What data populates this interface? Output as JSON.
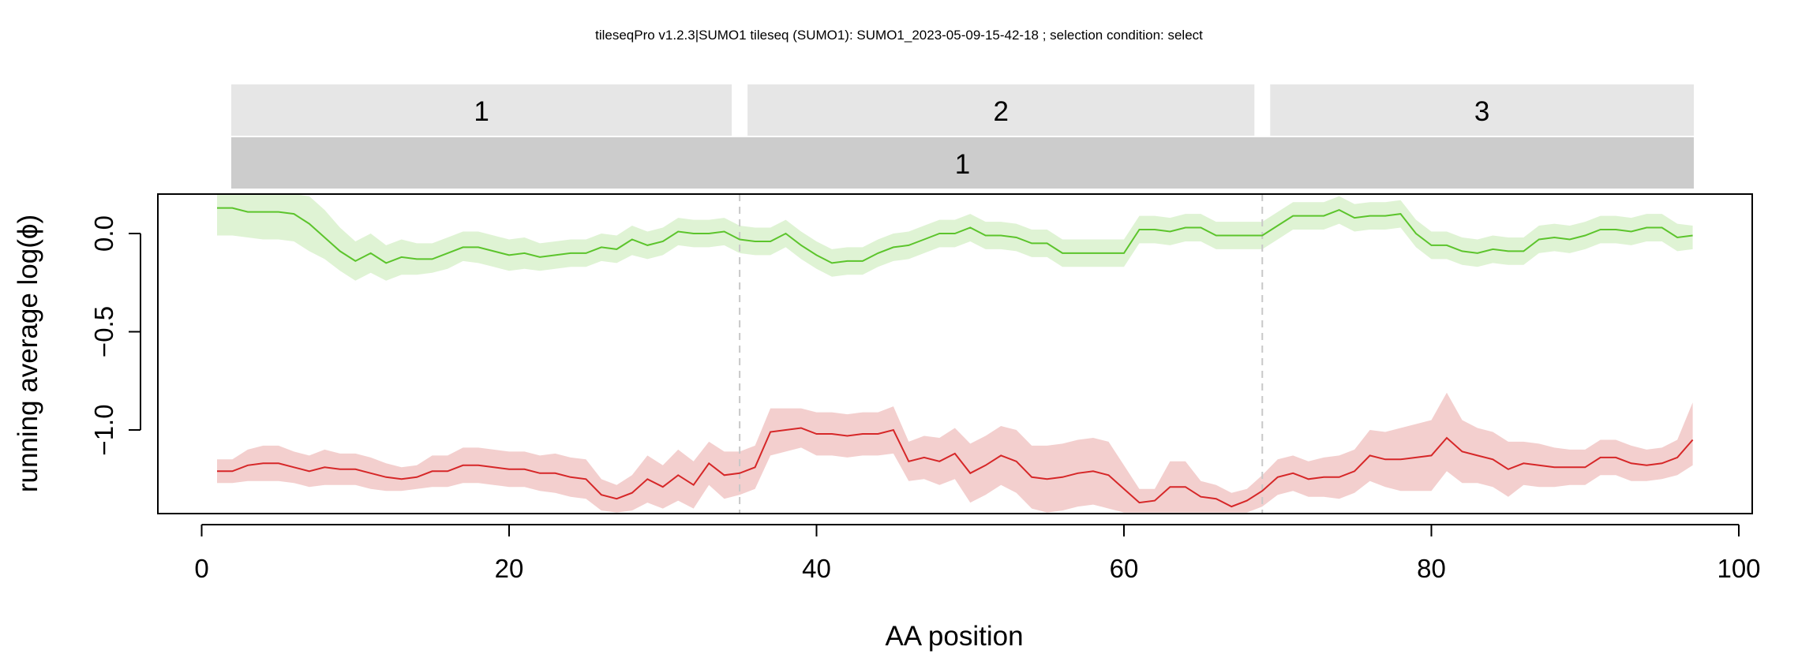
{
  "chart_data": {
    "type": "line",
    "title": "tileseqPro v1.2.3|SUMO1 tileseq (SUMO1): SUMO1_2023-05-09-15-42-18 ; selection condition: select",
    "xlabel": "AA position",
    "ylabel": "running average log(ϕ)",
    "xlim": [
      -3,
      101
    ],
    "ylim": [
      -1.4,
      0.2
    ],
    "x_ticks": [
      0,
      20,
      40,
      60,
      80,
      100
    ],
    "y_ticks": [
      0.0,
      -0.5,
      -1.0
    ],
    "y_tick_labels": [
      "0.0",
      "−0.5",
      "−1.0"
    ],
    "regions": [
      {
        "label": "1",
        "start": 2,
        "end": 34
      },
      {
        "label": "2",
        "start": 35,
        "end": 68
      },
      {
        "label": "3",
        "start": 69,
        "end": 97
      }
    ],
    "tiles_label": "1",
    "region_dividers": [
      35,
      69
    ],
    "colors": {
      "upper_line": "#5cc42c",
      "upper_band": "#dff3d4",
      "lower_line": "#d62728",
      "lower_band": "#f3cfce",
      "strip_top": "#e6e6e6",
      "strip_bottom": "#cccccc",
      "divider": "#c8c8c8"
    },
    "series": [
      {
        "x": [
          1,
          2,
          3,
          4,
          5,
          6,
          7,
          8,
          9,
          10,
          11,
          12,
          13,
          14,
          15,
          16,
          17,
          18,
          19,
          20,
          21,
          22,
          23,
          24,
          25,
          26,
          27,
          28,
          29,
          30,
          31,
          32,
          33,
          34,
          35,
          36,
          37,
          38,
          39,
          40,
          41,
          42,
          43,
          44,
          45,
          46,
          47,
          48,
          49,
          50,
          51,
          52,
          53,
          54,
          55,
          56,
          57,
          58,
          59,
          60,
          61,
          62,
          63,
          64,
          65,
          66,
          67,
          68,
          69,
          70,
          71,
          72,
          73,
          74,
          75,
          76,
          77,
          78,
          79,
          80,
          81,
          82,
          83,
          84,
          85,
          86,
          87,
          88,
          89,
          90,
          91,
          92,
          93,
          94,
          95,
          96,
          97
        ],
        "values": [
          0.13,
          0.13,
          0.11,
          0.11,
          0.11,
          0.1,
          0.05,
          -0.02,
          -0.09,
          -0.14,
          -0.1,
          -0.15,
          -0.12,
          -0.13,
          -0.13,
          -0.1,
          -0.07,
          -0.07,
          -0.09,
          -0.11,
          -0.1,
          -0.12,
          -0.11,
          -0.1,
          -0.1,
          -0.07,
          -0.08,
          -0.03,
          -0.06,
          -0.04,
          0.01,
          0.0,
          0.0,
          0.01,
          -0.03,
          -0.04,
          -0.04,
          0.0,
          -0.06,
          -0.11,
          -0.15,
          -0.14,
          -0.14,
          -0.1,
          -0.07,
          -0.06,
          -0.03,
          0.0,
          0.0,
          0.03,
          -0.01,
          -0.01,
          -0.02,
          -0.05,
          -0.05,
          -0.1,
          -0.1,
          -0.1,
          -0.1,
          -0.1,
          0.02,
          0.02,
          0.01,
          0.03,
          0.03,
          -0.01,
          -0.01,
          -0.01,
          -0.01,
          0.04,
          0.09,
          0.09,
          0.09,
          0.12,
          0.08,
          0.09,
          0.09,
          0.1,
          0.0,
          -0.06,
          -0.06,
          -0.09,
          -0.1,
          -0.08,
          -0.09,
          -0.09,
          -0.03,
          -0.02,
          -0.03,
          -0.01,
          0.02,
          0.02,
          0.01,
          0.03,
          0.03,
          -0.02,
          -0.01
        ],
        "lower": [
          -0.01,
          -0.01,
          -0.02,
          -0.03,
          -0.03,
          -0.04,
          -0.09,
          -0.13,
          -0.19,
          -0.24,
          -0.2,
          -0.24,
          -0.21,
          -0.21,
          -0.2,
          -0.18,
          -0.14,
          -0.15,
          -0.17,
          -0.19,
          -0.18,
          -0.19,
          -0.18,
          -0.17,
          -0.17,
          -0.14,
          -0.15,
          -0.11,
          -0.13,
          -0.11,
          -0.06,
          -0.07,
          -0.07,
          -0.06,
          -0.1,
          -0.11,
          -0.11,
          -0.07,
          -0.13,
          -0.18,
          -0.22,
          -0.21,
          -0.21,
          -0.17,
          -0.14,
          -0.13,
          -0.1,
          -0.07,
          -0.07,
          -0.04,
          -0.08,
          -0.08,
          -0.09,
          -0.12,
          -0.12,
          -0.17,
          -0.17,
          -0.17,
          -0.17,
          -0.17,
          -0.05,
          -0.05,
          -0.06,
          -0.04,
          -0.04,
          -0.08,
          -0.08,
          -0.08,
          -0.08,
          -0.03,
          0.02,
          0.02,
          0.02,
          0.05,
          0.01,
          0.02,
          0.02,
          0.03,
          -0.07,
          -0.13,
          -0.13,
          -0.16,
          -0.17,
          -0.15,
          -0.16,
          -0.16,
          -0.1,
          -0.09,
          -0.1,
          -0.08,
          -0.05,
          -0.05,
          -0.06,
          -0.04,
          -0.04,
          -0.09,
          -0.08
        ],
        "upper": [
          0.2,
          0.2,
          0.2,
          0.2,
          0.2,
          0.2,
          0.19,
          0.12,
          0.03,
          -0.04,
          0.0,
          -0.06,
          -0.03,
          -0.05,
          -0.05,
          -0.02,
          0.01,
          0.01,
          -0.01,
          -0.03,
          -0.02,
          -0.05,
          -0.04,
          -0.03,
          -0.03,
          0.0,
          -0.01,
          0.04,
          0.01,
          0.03,
          0.08,
          0.07,
          0.07,
          0.08,
          0.04,
          0.03,
          0.03,
          0.07,
          0.01,
          -0.04,
          -0.08,
          -0.07,
          -0.07,
          -0.03,
          0.0,
          0.01,
          0.04,
          0.07,
          0.07,
          0.1,
          0.06,
          0.06,
          0.05,
          0.02,
          0.02,
          -0.03,
          -0.03,
          -0.03,
          -0.03,
          -0.03,
          0.09,
          0.09,
          0.08,
          0.1,
          0.1,
          0.06,
          0.06,
          0.06,
          0.06,
          0.11,
          0.16,
          0.16,
          0.16,
          0.19,
          0.15,
          0.16,
          0.16,
          0.17,
          0.07,
          0.01,
          0.01,
          -0.02,
          -0.03,
          -0.01,
          -0.02,
          -0.02,
          0.04,
          0.05,
          0.04,
          0.06,
          0.09,
          0.09,
          0.08,
          0.1,
          0.1,
          0.05,
          0.04
        ]
      },
      {
        "x": [
          1,
          2,
          3,
          4,
          5,
          6,
          7,
          8,
          9,
          10,
          11,
          12,
          13,
          14,
          15,
          16,
          17,
          18,
          19,
          20,
          21,
          22,
          23,
          24,
          25,
          26,
          27,
          28,
          29,
          30,
          31,
          32,
          33,
          34,
          35,
          36,
          37,
          38,
          39,
          40,
          41,
          42,
          43,
          44,
          45,
          46,
          47,
          48,
          49,
          50,
          51,
          52,
          53,
          54,
          55,
          56,
          57,
          58,
          59,
          60,
          61,
          62,
          63,
          64,
          65,
          66,
          67,
          68,
          69,
          70,
          71,
          72,
          73,
          74,
          75,
          76,
          77,
          78,
          79,
          80,
          81,
          82,
          83,
          84,
          85,
          86,
          87,
          88,
          89,
          90,
          91,
          92,
          93,
          94,
          95,
          96,
          97
        ],
        "values": [
          -1.21,
          -1.21,
          -1.18,
          -1.17,
          -1.17,
          -1.19,
          -1.21,
          -1.19,
          -1.2,
          -1.2,
          -1.22,
          -1.24,
          -1.25,
          -1.24,
          -1.21,
          -1.21,
          -1.18,
          -1.18,
          -1.19,
          -1.2,
          -1.2,
          -1.22,
          -1.22,
          -1.24,
          -1.25,
          -1.33,
          -1.35,
          -1.32,
          -1.25,
          -1.29,
          -1.23,
          -1.28,
          -1.17,
          -1.23,
          -1.22,
          -1.19,
          -1.01,
          -1.0,
          -0.99,
          -1.02,
          -1.02,
          -1.03,
          -1.02,
          -1.02,
          -1.0,
          -1.16,
          -1.14,
          -1.16,
          -1.12,
          -1.22,
          -1.18,
          -1.13,
          -1.16,
          -1.24,
          -1.25,
          -1.24,
          -1.22,
          -1.21,
          -1.23,
          -1.3,
          -1.37,
          -1.36,
          -1.29,
          -1.29,
          -1.34,
          -1.35,
          -1.39,
          -1.36,
          -1.31,
          -1.24,
          -1.22,
          -1.25,
          -1.24,
          -1.24,
          -1.21,
          -1.13,
          -1.15,
          -1.15,
          -1.14,
          -1.13,
          -1.04,
          -1.11,
          -1.13,
          -1.15,
          -1.2,
          -1.17,
          -1.18,
          -1.19,
          -1.19,
          -1.19,
          -1.14,
          -1.14,
          -1.17,
          -1.18,
          -1.17,
          -1.14,
          -1.05
        ],
        "lower": [
          -1.27,
          -1.27,
          -1.26,
          -1.26,
          -1.26,
          -1.27,
          -1.29,
          -1.28,
          -1.28,
          -1.28,
          -1.3,
          -1.31,
          -1.31,
          -1.3,
          -1.29,
          -1.29,
          -1.27,
          -1.27,
          -1.28,
          -1.29,
          -1.29,
          -1.31,
          -1.32,
          -1.34,
          -1.35,
          -1.41,
          -1.42,
          -1.41,
          -1.37,
          -1.4,
          -1.36,
          -1.4,
          -1.28,
          -1.35,
          -1.33,
          -1.3,
          -1.13,
          -1.11,
          -1.09,
          -1.13,
          -1.13,
          -1.14,
          -1.13,
          -1.13,
          -1.12,
          -1.26,
          -1.25,
          -1.28,
          -1.25,
          -1.37,
          -1.33,
          -1.28,
          -1.32,
          -1.4,
          -1.42,
          -1.41,
          -1.39,
          -1.38,
          -1.4,
          -1.42,
          -1.42,
          -1.42,
          -1.42,
          -1.42,
          -1.42,
          -1.42,
          -1.42,
          -1.42,
          -1.39,
          -1.33,
          -1.31,
          -1.34,
          -1.34,
          -1.35,
          -1.32,
          -1.26,
          -1.29,
          -1.31,
          -1.31,
          -1.31,
          -1.21,
          -1.27,
          -1.27,
          -1.29,
          -1.34,
          -1.28,
          -1.29,
          -1.29,
          -1.28,
          -1.28,
          -1.23,
          -1.23,
          -1.26,
          -1.26,
          -1.25,
          -1.23,
          -1.18
        ],
        "upper": [
          -1.15,
          -1.15,
          -1.1,
          -1.08,
          -1.08,
          -1.11,
          -1.13,
          -1.1,
          -1.12,
          -1.12,
          -1.14,
          -1.17,
          -1.19,
          -1.18,
          -1.13,
          -1.13,
          -1.09,
          -1.09,
          -1.1,
          -1.11,
          -1.11,
          -1.13,
          -1.12,
          -1.14,
          -1.15,
          -1.25,
          -1.28,
          -1.23,
          -1.13,
          -1.18,
          -1.1,
          -1.16,
          -1.06,
          -1.11,
          -1.11,
          -1.08,
          -0.89,
          -0.89,
          -0.89,
          -0.91,
          -0.91,
          -0.92,
          -0.91,
          -0.91,
          -0.88,
          -1.06,
          -1.03,
          -1.04,
          -0.99,
          -1.07,
          -1.03,
          -0.98,
          -1.0,
          -1.08,
          -1.08,
          -1.07,
          -1.05,
          -1.04,
          -1.06,
          -1.18,
          -1.3,
          -1.3,
          -1.16,
          -1.16,
          -1.26,
          -1.28,
          -1.32,
          -1.3,
          -1.23,
          -1.15,
          -1.13,
          -1.16,
          -1.14,
          -1.13,
          -1.1,
          -1.0,
          -1.01,
          -0.99,
          -0.97,
          -0.95,
          -0.81,
          -0.95,
          -0.99,
          -1.01,
          -1.06,
          -1.06,
          -1.07,
          -1.09,
          -1.1,
          -1.1,
          -1.05,
          -1.05,
          -1.08,
          -1.1,
          -1.09,
          -1.05,
          -0.86
        ]
      }
    ]
  }
}
